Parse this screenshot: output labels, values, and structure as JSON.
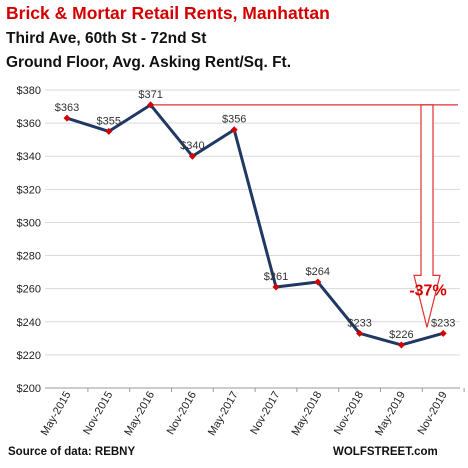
{
  "header": {
    "title": "Brick & Mortar Retail Rents, Manhattan",
    "subtitle_1": "Third Ave, 60th St - 72nd St",
    "subtitle_2": "Ground Floor, Avg. Asking Rent/Sq. Ft."
  },
  "footer": {
    "source": "Source of data: REBNY",
    "credit": "WOLFSTREET.com"
  },
  "colors": {
    "title": "#d40000",
    "line": "#1f3864",
    "marker": "#d40000",
    "annotation": "#e03030",
    "grid": "#d9d9d9"
  },
  "chart_data": {
    "type": "line",
    "categories": [
      "May-2015",
      "Nov-2015",
      "May-2016",
      "Nov-2016",
      "May-2017",
      "Nov-2017",
      "May-2018",
      "Nov-2018",
      "May-2019",
      "Nov-2019"
    ],
    "values": [
      363,
      355,
      371,
      340,
      356,
      261,
      264,
      233,
      226,
      233
    ],
    "data_labels": [
      "$363",
      "$355",
      "$371",
      "$340",
      "$356",
      "$261",
      "$264",
      "$233",
      "$226",
      "$233"
    ],
    "yticks": [
      200,
      220,
      240,
      260,
      280,
      300,
      320,
      340,
      360,
      380
    ],
    "ytick_labels": [
      "$200",
      "$220",
      "$240",
      "$260",
      "$280",
      "$300",
      "$320",
      "$340",
      "$360",
      "$380"
    ],
    "ylim": [
      200,
      380
    ],
    "grid": "horizontal",
    "annotation": {
      "text": "-37%",
      "from_value": 371,
      "to_value": 233
    }
  }
}
